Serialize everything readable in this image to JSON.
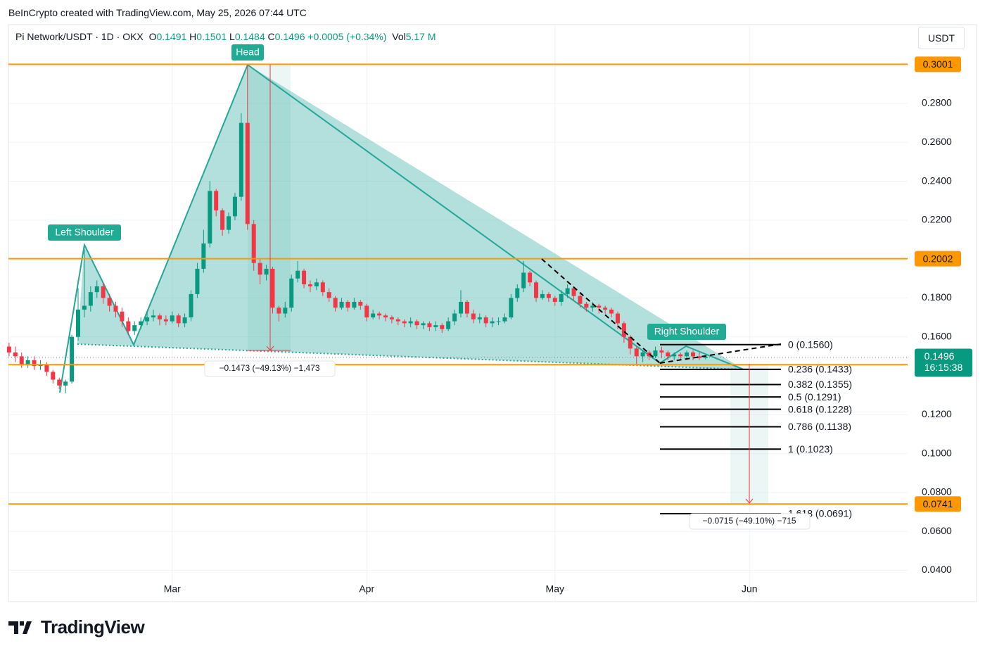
{
  "header": "BeInCrypto created with TradingView.com, May 25, 2026 07:44 UTC",
  "logo": "TradingView",
  "currency_button": "USDT",
  "chart_data": {
    "type": "candlestick",
    "legend": {
      "symbol": "Pi Network/USDT · 1D · OKX",
      "items": [
        {
          "key": "O",
          "value": 0.1491
        },
        {
          "key": "H",
          "value": 0.1501
        },
        {
          "key": "L",
          "value": 0.1484
        },
        {
          "key": "C",
          "value": 0.1496
        }
      ],
      "change": "+0.0005 (+0.34%)",
      "vol_key": "Vol",
      "vol": "5.17 M"
    },
    "open": [
      0.155,
      0.152,
      0.15,
      0.146,
      0.148,
      0.145,
      0.146,
      0.142,
      0.138,
      0.135,
      0.137,
      0.16,
      0.174,
      0.176,
      0.183,
      0.186,
      0.18,
      0.176,
      0.173,
      0.168,
      0.163,
      0.166,
      0.168,
      0.17,
      0.171,
      0.169,
      0.168,
      0.171,
      0.167,
      0.17,
      0.182,
      0.195,
      0.208,
      0.235,
      0.225,
      0.215,
      0.222,
      0.232,
      0.27,
      0.218,
      0.198,
      0.192,
      0.195,
      0.175,
      0.172,
      0.175,
      0.19,
      0.194,
      0.187,
      0.186,
      0.188,
      0.183,
      0.18,
      0.175,
      0.178,
      0.175,
      0.178,
      0.176,
      0.17,
      0.172,
      0.171,
      0.17,
      0.169,
      0.168,
      0.167,
      0.168,
      0.166,
      0.167,
      0.165,
      0.166,
      0.164,
      0.168,
      0.172,
      0.178,
      0.172,
      0.169,
      0.17,
      0.167,
      0.168,
      0.168,
      0.17,
      0.18,
      0.185,
      0.193,
      0.188,
      0.18,
      0.182,
      0.18,
      0.178,
      0.182,
      0.185,
      0.181,
      0.177,
      0.175,
      0.176,
      0.175,
      0.174,
      0.172,
      0.167,
      0.16,
      0.154,
      0.15,
      0.152,
      0.15,
      0.153,
      0.152,
      0.15,
      0.151,
      0.15,
      0.152,
      0.15,
      0.1491
    ],
    "high": [
      0.157,
      0.155,
      0.152,
      0.15,
      0.15,
      0.148,
      0.147,
      0.143,
      0.139,
      0.138,
      0.161,
      0.185,
      0.205,
      0.186,
      0.189,
      0.188,
      0.182,
      0.178,
      0.175,
      0.17,
      0.168,
      0.17,
      0.173,
      0.174,
      0.172,
      0.171,
      0.173,
      0.172,
      0.172,
      0.184,
      0.198,
      0.215,
      0.24,
      0.236,
      0.226,
      0.224,
      0.234,
      0.275,
      0.3001,
      0.22,
      0.2,
      0.197,
      0.196,
      0.176,
      0.178,
      0.192,
      0.199,
      0.195,
      0.189,
      0.19,
      0.189,
      0.185,
      0.181,
      0.18,
      0.179,
      0.18,
      0.179,
      0.177,
      0.174,
      0.173,
      0.172,
      0.171,
      0.17,
      0.169,
      0.17,
      0.169,
      0.168,
      0.168,
      0.168,
      0.167,
      0.17,
      0.174,
      0.184,
      0.179,
      0.174,
      0.172,
      0.171,
      0.17,
      0.17,
      0.172,
      0.182,
      0.187,
      0.199,
      0.194,
      0.189,
      0.184,
      0.183,
      0.181,
      0.184,
      0.187,
      0.186,
      0.182,
      0.178,
      0.178,
      0.177,
      0.176,
      0.175,
      0.173,
      0.168,
      0.161,
      0.155,
      0.153,
      0.153,
      0.155,
      0.155,
      0.153,
      0.152,
      0.152,
      0.153,
      0.153,
      0.152,
      0.1501
    ],
    "low": [
      0.15,
      0.147,
      0.144,
      0.144,
      0.143,
      0.143,
      0.14,
      0.136,
      0.133,
      0.131,
      0.136,
      0.158,
      0.17,
      0.173,
      0.18,
      0.177,
      0.173,
      0.17,
      0.165,
      0.161,
      0.161,
      0.164,
      0.166,
      0.168,
      0.166,
      0.166,
      0.167,
      0.165,
      0.165,
      0.168,
      0.18,
      0.193,
      0.206,
      0.222,
      0.212,
      0.213,
      0.22,
      0.23,
      0.215,
      0.194,
      0.187,
      0.189,
      0.172,
      0.168,
      0.17,
      0.173,
      0.188,
      0.185,
      0.183,
      0.184,
      0.181,
      0.178,
      0.173,
      0.174,
      0.173,
      0.174,
      0.174,
      0.168,
      0.169,
      0.169,
      0.168,
      0.167,
      0.166,
      0.165,
      0.165,
      0.164,
      0.164,
      0.163,
      0.163,
      0.162,
      0.163,
      0.166,
      0.17,
      0.17,
      0.167,
      0.167,
      0.165,
      0.165,
      0.166,
      0.167,
      0.169,
      0.178,
      0.183,
      0.186,
      0.178,
      0.179,
      0.178,
      0.176,
      0.176,
      0.18,
      0.179,
      0.175,
      0.173,
      0.173,
      0.172,
      0.172,
      0.17,
      0.164,
      0.157,
      0.151,
      0.146,
      0.147,
      0.148,
      0.149,
      0.149,
      0.148,
      0.148,
      0.148,
      0.148,
      0.148,
      0.148,
      0.1484
    ],
    "close": [
      0.152,
      0.15,
      0.146,
      0.148,
      0.145,
      0.146,
      0.142,
      0.138,
      0.135,
      0.137,
      0.16,
      0.174,
      0.176,
      0.183,
      0.186,
      0.18,
      0.176,
      0.173,
      0.168,
      0.163,
      0.166,
      0.168,
      0.17,
      0.171,
      0.169,
      0.168,
      0.171,
      0.167,
      0.17,
      0.182,
      0.195,
      0.208,
      0.235,
      0.225,
      0.215,
      0.222,
      0.232,
      0.27,
      0.218,
      0.198,
      0.192,
      0.195,
      0.175,
      0.172,
      0.175,
      0.19,
      0.194,
      0.187,
      0.186,
      0.188,
      0.183,
      0.18,
      0.175,
      0.178,
      0.175,
      0.178,
      0.176,
      0.17,
      0.172,
      0.171,
      0.17,
      0.169,
      0.168,
      0.167,
      0.168,
      0.166,
      0.167,
      0.165,
      0.166,
      0.164,
      0.168,
      0.172,
      0.178,
      0.172,
      0.169,
      0.17,
      0.167,
      0.168,
      0.168,
      0.17,
      0.18,
      0.185,
      0.193,
      0.188,
      0.18,
      0.182,
      0.18,
      0.178,
      0.182,
      0.185,
      0.181,
      0.177,
      0.175,
      0.176,
      0.175,
      0.174,
      0.172,
      0.167,
      0.16,
      0.154,
      0.15,
      0.152,
      0.15,
      0.153,
      0.152,
      0.15,
      0.151,
      0.15,
      0.152,
      0.15,
      0.1491,
      0.1496
    ],
    "up_color": "#089981",
    "down_color": "#f23645",
    "xlim": [
      -0.1,
      143.2
    ],
    "xticks": [
      {
        "value": 26,
        "label": "Mar"
      },
      {
        "value": 57,
        "label": "Apr"
      },
      {
        "value": 87,
        "label": "May"
      },
      {
        "value": 118,
        "label": "Jun"
      }
    ],
    "ylim": [
      0.0239,
      0.3205
    ],
    "yticks": [
      {
        "value": 0.28,
        "label": "0.2800"
      },
      {
        "value": 0.26,
        "label": "0.2600"
      },
      {
        "value": 0.24,
        "label": "0.2400"
      },
      {
        "value": 0.22,
        "label": "0.2200"
      },
      {
        "value": 0.18,
        "label": "0.1800"
      },
      {
        "value": 0.16,
        "label": "0.1600"
      },
      {
        "value": 0.12,
        "label": "0.1200"
      },
      {
        "value": 0.1,
        "label": "0.1000"
      },
      {
        "value": 0.08,
        "label": "0.0800"
      },
      {
        "value": 0.06,
        "label": "0.0600"
      },
      {
        "value": 0.04,
        "label": "0.0400"
      }
    ],
    "grid": true,
    "price_lines": [
      {
        "value": 0.3001,
        "color": "#ff9800"
      },
      {
        "value": 0.2002,
        "color": "#ff9800"
      },
      {
        "value": 0.1457,
        "color": "#ff9800"
      },
      {
        "value": 0.0741,
        "color": "#ff9800"
      }
    ],
    "current_price": {
      "value": 0.1496,
      "countdown": "16:15:38",
      "color": "#089981"
    },
    "fib_levels": [
      {
        "value": 0.156,
        "label": "0 (0.1560)"
      },
      {
        "value": 0.1433,
        "label": "0.236 (0.1433)"
      },
      {
        "value": 0.1355,
        "label": "0.382 (0.1355)"
      },
      {
        "value": 0.1291,
        "label": "0.5 (0.1291)"
      },
      {
        "value": 0.1228,
        "label": "0.618 (0.1228)"
      },
      {
        "value": 0.1138,
        "label": "0.786 (0.1138)"
      },
      {
        "value": 0.1023,
        "label": "1 (0.1023)"
      },
      {
        "value": 0.0691,
        "label": "1.618 (0.0691)"
      }
    ],
    "annotations": {
      "head": "Head",
      "left_shoulder": "Left Shoulder",
      "right_shoulder": "Right Shoulder",
      "head_measure": "−0.1473 (−49.13%) −1,473",
      "target_measure": "−0.0715 (−49.10%) −715"
    }
  }
}
